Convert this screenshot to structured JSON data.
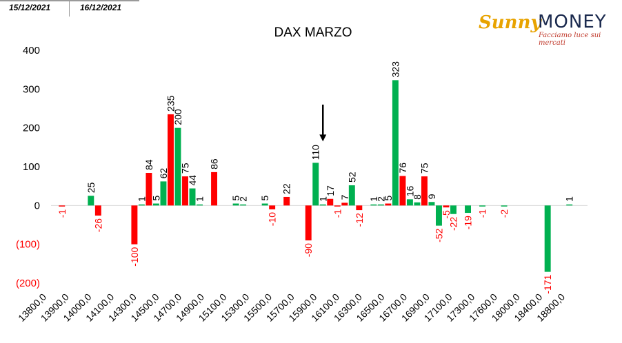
{
  "header": {
    "date_tabs": [
      "15/12/2021",
      "16/12/2021"
    ]
  },
  "logo": {
    "brand_left": "Sunny",
    "brand_right": "MONEY",
    "tagline": "Facciamo luce sui mercati"
  },
  "colors": {
    "green": "#00b050",
    "red": "#ff0000",
    "negative_axis_label": "#ff0000",
    "arrow": "#000000"
  },
  "chart_data": {
    "type": "bar",
    "title": "DAX MARZO",
    "xlabel": "",
    "ylabel": "",
    "ylim": [
      -200,
      400
    ],
    "yticks": [
      {
        "value": 400,
        "label": "400"
      },
      {
        "value": 300,
        "label": "300"
      },
      {
        "value": 200,
        "label": "200"
      },
      {
        "value": 100,
        "label": "100"
      },
      {
        "value": 0,
        "label": "0"
      },
      {
        "value": -100,
        "label": "(100)"
      },
      {
        "value": -200,
        "label": "(200)"
      }
    ],
    "grid": false,
    "legend": "none",
    "x_tick_labels": [
      "13800,0",
      "13900,0",
      "14000,0",
      "14100,0",
      "14300,0",
      "14500,0",
      "14700,0",
      "14900,0",
      "15100,0",
      "15300,0",
      "15500,0",
      "15700,0",
      "15900,0",
      "16100,0",
      "16300,0",
      "16500,0",
      "16700,0",
      "16900,0",
      "17100,0",
      "17300,0",
      "17600,0",
      "18000,0",
      "18400,0",
      "18800,0"
    ],
    "bars": [
      {
        "slot": 1,
        "color": "red",
        "value": -1,
        "label": "-1"
      },
      {
        "slot": 5,
        "color": "green",
        "value": 25,
        "label": "25"
      },
      {
        "slot": 6,
        "color": "red",
        "value": -26,
        "label": "-26"
      },
      {
        "slot": 11,
        "color": "red",
        "value": -100,
        "label": "-100"
      },
      {
        "slot": 12,
        "color": "green",
        "value": 1,
        "label": "1"
      },
      {
        "slot": 13,
        "color": "red",
        "value": 84,
        "label": "84"
      },
      {
        "slot": 14,
        "color": "green",
        "value": 5,
        "label": "5"
      },
      {
        "slot": 15,
        "color": "green",
        "value": 62,
        "label": "62"
      },
      {
        "slot": 16,
        "color": "red",
        "value": 235,
        "label": "235"
      },
      {
        "slot": 17,
        "color": "green",
        "value": 200,
        "label": "200"
      },
      {
        "slot": 18,
        "color": "red",
        "value": 75,
        "label": "75"
      },
      {
        "slot": 19,
        "color": "green",
        "value": 44,
        "label": "44"
      },
      {
        "slot": 20,
        "color": "green",
        "value": 1,
        "label": "1"
      },
      {
        "slot": 22,
        "color": "red",
        "value": 86,
        "label": "86"
      },
      {
        "slot": 25,
        "color": "green",
        "value": 5,
        "label": "5"
      },
      {
        "slot": 26,
        "color": "green",
        "value": 2,
        "label": "2"
      },
      {
        "slot": 29,
        "color": "green",
        "value": 5,
        "label": "5"
      },
      {
        "slot": 30,
        "color": "red",
        "value": -10,
        "label": "-10"
      },
      {
        "slot": 32,
        "color": "red",
        "value": 22,
        "label": "22"
      },
      {
        "slot": 35,
        "color": "red",
        "value": -90,
        "label": "-90"
      },
      {
        "slot": 36,
        "color": "green",
        "value": 110,
        "label": "110"
      },
      {
        "slot": 37,
        "color": "green",
        "value": 1,
        "label": "1"
      },
      {
        "slot": 38,
        "color": "red",
        "value": 17,
        "label": "17"
      },
      {
        "slot": 39,
        "color": "red",
        "value": -1,
        "label": "-1"
      },
      {
        "slot": 40,
        "color": "red",
        "value": 7,
        "label": "7"
      },
      {
        "slot": 41,
        "color": "green",
        "value": 52,
        "label": "52"
      },
      {
        "slot": 42,
        "color": "red",
        "value": -12,
        "label": "-12"
      },
      {
        "slot": 44,
        "color": "green",
        "value": 1,
        "label": "1"
      },
      {
        "slot": 45,
        "color": "green",
        "value": 2,
        "label": "2"
      },
      {
        "slot": 46,
        "color": "red",
        "value": 5,
        "label": "5"
      },
      {
        "slot": 47,
        "color": "green",
        "value": 323,
        "label": "323"
      },
      {
        "slot": 48,
        "color": "red",
        "value": 76,
        "label": "76"
      },
      {
        "slot": 49,
        "color": "green",
        "value": 16,
        "label": "16"
      },
      {
        "slot": 50,
        "color": "green",
        "value": 8,
        "label": "8"
      },
      {
        "slot": 51,
        "color": "red",
        "value": 75,
        "label": "75"
      },
      {
        "slot": 52,
        "color": "green",
        "value": 9,
        "label": "9"
      },
      {
        "slot": 53,
        "color": "green",
        "value": -52,
        "label": "-52"
      },
      {
        "slot": 54,
        "color": "red",
        "value": -5,
        "label": "-5"
      },
      {
        "slot": 55,
        "color": "green",
        "value": -22,
        "label": "-22"
      },
      {
        "slot": 57,
        "color": "green",
        "value": -19,
        "label": "-19"
      },
      {
        "slot": 59,
        "color": "green",
        "value": -1,
        "label": "-1"
      },
      {
        "slot": 62,
        "color": "green",
        "value": -2,
        "label": "-2"
      },
      {
        "slot": 68,
        "color": "green",
        "value": -171,
        "label": "-171"
      },
      {
        "slot": 71,
        "color": "green",
        "value": 1,
        "label": "1"
      }
    ],
    "annotation": {
      "type": "arrow-down",
      "near_slot": 36,
      "tip_value": 165,
      "tail_value": 260
    }
  }
}
